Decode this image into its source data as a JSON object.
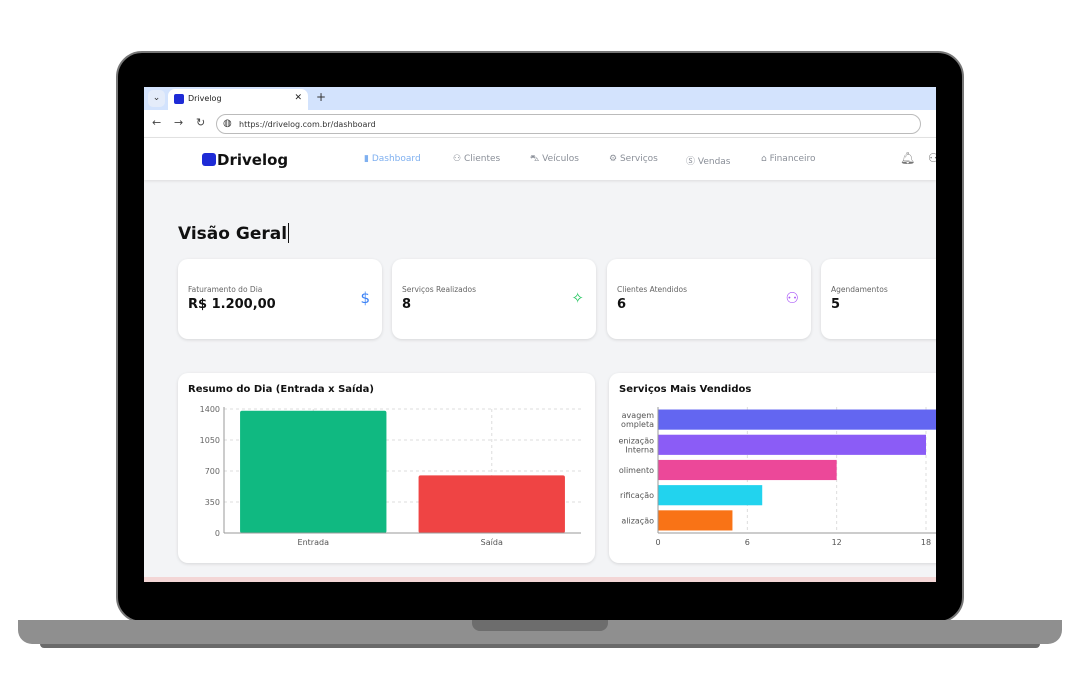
{
  "browser": {
    "tab_title": "Drivelog",
    "url": "https://drivelog.com.br/dashboard"
  },
  "app": {
    "logo": "Drivelog",
    "menu": [
      {
        "label": "Dashboard",
        "icon": "bar-chart-icon",
        "active": true
      },
      {
        "label": "Clientes",
        "icon": "users-icon"
      },
      {
        "label": "Veículos",
        "icon": "car-icon"
      },
      {
        "label": "Serviços",
        "icon": "gear-icon"
      },
      {
        "label": "Vendas",
        "icon": "dollar-circle-icon"
      },
      {
        "label": "Financeiro",
        "icon": "bank-icon"
      }
    ]
  },
  "page": {
    "title": "Visão Geral"
  },
  "cards": [
    {
      "label": "Faturamento do Dia",
      "value": "R$ 1.200,00",
      "icon": "dollar-icon",
      "color": "#3b82f6"
    },
    {
      "label": "Serviços Realizados",
      "value": "8",
      "icon": "sparkle-icon",
      "color": "#22c55e"
    },
    {
      "label": "Clientes Atendidos",
      "value": "6",
      "icon": "users-icon",
      "color": "#a855f7"
    },
    {
      "label": "Agendamentos",
      "value": "5",
      "icon": "calendar-icon",
      "color": "#f59e0b"
    }
  ],
  "chart_data": [
    {
      "type": "bar",
      "title": "Resumo do Dia (Entrada x Saída)",
      "categories": [
        "Entrada",
        "Saída"
      ],
      "values": [
        1380,
        650
      ],
      "colors": [
        "#10b981",
        "#ef4444"
      ],
      "ylim": [
        0,
        1400
      ],
      "yticks": [
        0,
        350,
        700,
        1050,
        1400
      ],
      "grid": true
    },
    {
      "type": "bar",
      "orientation": "horizontal",
      "title": "Serviços Mais Vendidos",
      "categories": [
        "Lavagem Completa",
        "Higienização Interna",
        "Polimento",
        "Cristalização/Vitrificação",
        "Revitalização"
      ],
      "category_labels_visible": [
        "avagem ompleta",
        "enização Interna",
        "olimento",
        "rificação",
        "alização"
      ],
      "values": [
        20,
        18,
        12,
        7,
        5
      ],
      "colors": [
        "#6366f1",
        "#8b5cf6",
        "#ec4899",
        "#22d3ee",
        "#f97316"
      ],
      "xlim": [
        0,
        18
      ],
      "xticks": [
        0,
        6,
        12,
        18
      ],
      "grid": true
    }
  ]
}
